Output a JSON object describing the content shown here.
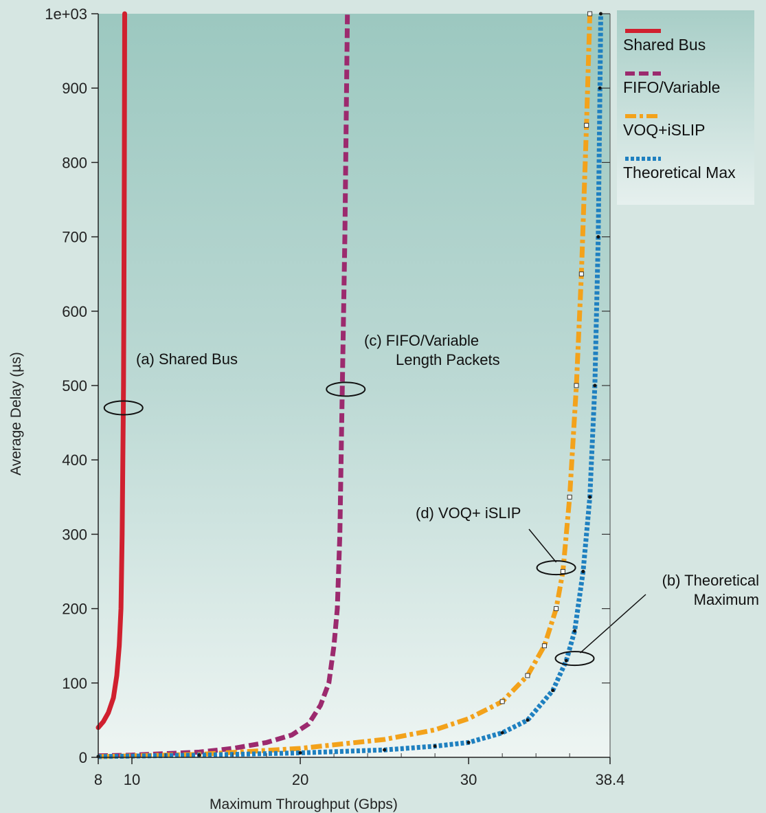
{
  "chart_data": {
    "type": "line",
    "xlabel": "Maximum Throughput (Gbps)",
    "ylabel": "Average Delay (µs)",
    "xlim": [
      8,
      38.4
    ],
    "ylim": [
      0,
      1000
    ],
    "xticks": [
      8,
      10,
      20,
      30,
      38.4
    ],
    "xtick_labels": [
      "8",
      "10",
      "20",
      "30",
      "38.4"
    ],
    "yticks": [
      0,
      100,
      200,
      300,
      400,
      500,
      600,
      700,
      800,
      900,
      1000
    ],
    "ytick_labels": [
      "0",
      "100",
      "200",
      "300",
      "400",
      "500",
      "600",
      "700",
      "800",
      "900",
      "1e+03"
    ],
    "grid": false,
    "legend_position": "right",
    "series": [
      {
        "name": "Shared Bus",
        "color": "#d0202f",
        "style": "solid",
        "x": [
          8.0,
          8.3,
          8.6,
          8.9,
          9.1,
          9.25,
          9.35,
          9.42,
          9.46,
          9.5,
          9.52,
          9.55,
          9.57
        ],
        "y": [
          40,
          48,
          60,
          80,
          110,
          150,
          200,
          300,
          400,
          500,
          600,
          800,
          1000
        ]
      },
      {
        "name": "FIFO/Variable",
        "color": "#9c2a6e",
        "style": "dashed",
        "x": [
          8,
          10,
          12,
          14,
          16,
          18,
          19.5,
          20.5,
          21.2,
          21.7,
          22.0,
          22.2,
          22.35,
          22.5,
          22.65,
          22.8
        ],
        "y": [
          2,
          3,
          5,
          7,
          12,
          20,
          30,
          45,
          70,
          100,
          150,
          200,
          300,
          500,
          700,
          1000
        ]
      },
      {
        "name": "VOQ+iSLIP",
        "color": "#f3a21b",
        "style": "dash-dot",
        "x": [
          8,
          14,
          20,
          25,
          28,
          30,
          32,
          33.5,
          34.5,
          35.2,
          35.6,
          36.0,
          36.4,
          36.7,
          37.0,
          37.2
        ],
        "y": [
          1,
          4,
          12,
          24,
          37,
          52,
          75,
          110,
          150,
          200,
          250,
          350,
          500,
          650,
          850,
          1000
        ]
      },
      {
        "name": "Theoretical Max",
        "color": "#1f80c0",
        "style": "dotted",
        "x": [
          8,
          14,
          20,
          25,
          28,
          30,
          32,
          33.5,
          35,
          35.8,
          36.3,
          36.8,
          37.2,
          37.5,
          37.7,
          37.8,
          37.85
        ],
        "y": [
          1,
          3,
          6,
          10,
          15,
          20,
          33,
          50,
          90,
          130,
          170,
          250,
          350,
          500,
          700,
          900,
          1000
        ]
      }
    ],
    "annotations": [
      {
        "lines": [
          "(a) Shared Bus"
        ],
        "x": 9.5,
        "y": 470
      },
      {
        "lines": [
          "(c) FIFO/Variable",
          "Length Packets"
        ],
        "x": 22.7,
        "y": 495
      },
      {
        "lines": [
          "(d) VOQ+ iSLIP"
        ],
        "x": 35.2,
        "y": 255
      },
      {
        "lines": [
          "(b) Theoretical",
          "Maximum"
        ],
        "x": 36.3,
        "y": 133
      }
    ]
  }
}
